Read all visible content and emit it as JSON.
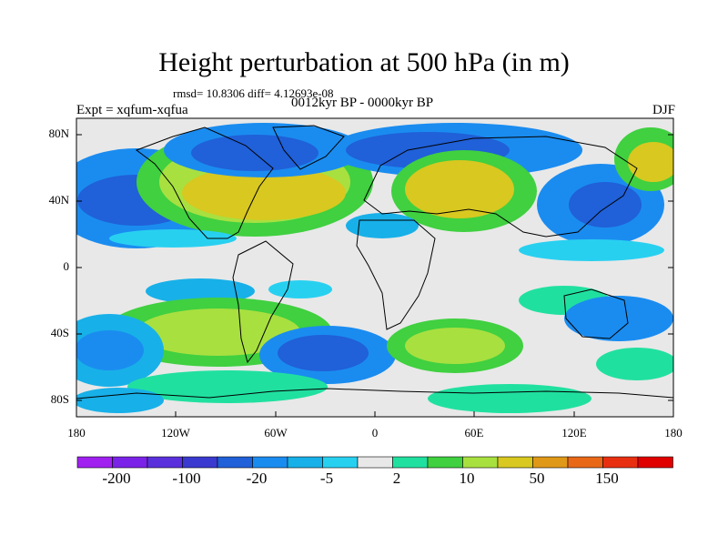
{
  "title": "Height perturbation at 500 hPa (in m)",
  "stats": "rmsd= 10.8306 diff= 4.12693e-08",
  "experiment": "Expt = xqfum-xqfua",
  "period": "0012kyr BP - 0000kyr BP",
  "season": "DJF",
  "lat_ticks": [
    "80N",
    "40N",
    "0",
    "40S",
    "80S"
  ],
  "lon_ticks": [
    "180",
    "120W",
    "60W",
    "0",
    "60E",
    "120E",
    "180"
  ],
  "colorbar": {
    "labels": [
      "-200",
      "-100",
      "-20",
      "-5",
      "2",
      "10",
      "50",
      "150"
    ],
    "colors": [
      "#a020f0",
      "#7a22e8",
      "#5a30dc",
      "#3a3ad0",
      "#2060d8",
      "#1a8cf0",
      "#18b0e8",
      "#28d0f0",
      "#e8e8e8",
      "#20e0a0",
      "#40d040",
      "#a8e040",
      "#d8c820",
      "#e09818",
      "#e86818",
      "#e83010",
      "#e00000"
    ]
  },
  "map_colors": {
    "neutral": "#e8e8e8",
    "cyan": "#28d0f0",
    "light_blue": "#18b0e8",
    "blue": "#1a8cf0",
    "dark_blue": "#2060d8",
    "green_teal": "#20e0a0",
    "green": "#40d040",
    "yellow_green": "#a8e040",
    "olive": "#d8c820",
    "coast": "#000000"
  }
}
